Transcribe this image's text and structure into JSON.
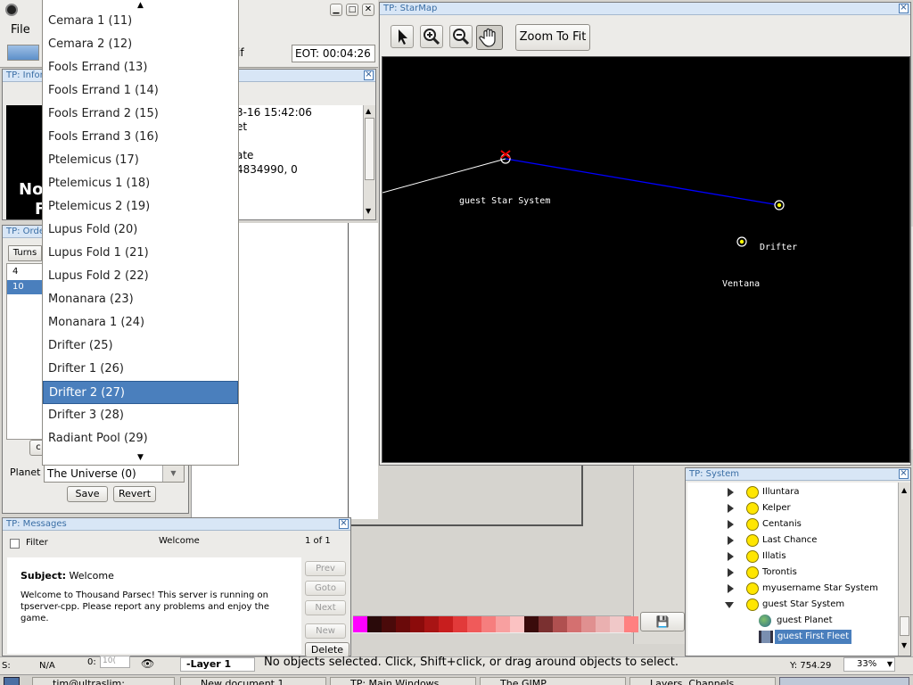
{
  "main_window": {
    "menu_file": "File",
    "field_partial": "if",
    "eot": "EOT: 00:04:26"
  },
  "info_window": {
    "title": "TP: Infor",
    "big_text_line1": "No",
    "big_text_line2": "F",
    "lines": [
      "3-16 15:42:06",
      "et",
      "",
      "ate",
      "4834990, 0"
    ]
  },
  "orders_window": {
    "title": "TP: Orde",
    "turns_label": "Turns",
    "rows": [
      "4",
      "10"
    ],
    "button_partial": "c",
    "planet_label": "Planet",
    "planet_value": "The Universe (0)",
    "save": "Save",
    "revert": "Revert"
  },
  "dropdown": {
    "items": [
      "Cemara 1 (11)",
      "Cemara 2 (12)",
      "Fools Errand (13)",
      "Fools Errand 1 (14)",
      "Fools Errand 2 (15)",
      "Fools Errand 3 (16)",
      "Ptelemicus (17)",
      "Ptelemicus 1 (18)",
      "Ptelemicus 2 (19)",
      "Lupus Fold (20)",
      "Lupus Fold 1 (21)",
      "Lupus Fold 2 (22)",
      "Monanara (23)",
      "Monanara 1 (24)",
      "Drifter (25)",
      "Drifter 1 (26)",
      "Drifter 2 (27)",
      "Drifter 3 (28)",
      "Radiant Pool (29)"
    ],
    "selected_index": 16
  },
  "starmap": {
    "title": "TP: StarMap",
    "zoom_to_fit": "Zoom To Fit",
    "labels": {
      "guest": "guest Star System",
      "drifter": "Drifter",
      "ventana": "Ventana"
    }
  },
  "system_window": {
    "title": "TP: System",
    "items": [
      {
        "label": "Illuntara"
      },
      {
        "label": "Kelper"
      },
      {
        "label": "Centanis"
      },
      {
        "label": "Last Chance"
      },
      {
        "label": "Illatis"
      },
      {
        "label": "Torontis"
      },
      {
        "label": "myusername Star System"
      },
      {
        "label": "guest Star System"
      }
    ],
    "children": [
      {
        "label": "guest Planet"
      },
      {
        "label": "guest First Fleet"
      }
    ]
  },
  "messages_window": {
    "title": "TP: Messages",
    "filter": "Filter",
    "heading": "Welcome",
    "counter": "1 of 1",
    "subject_label": "Subject:",
    "subject_value": "Welcome",
    "body": "Welcome to Thousand Parsec! This server is running on tpserver-cpp. Please report any problems and enjoy the game.",
    "buttons": {
      "prev": "Prev",
      "goto": "Goto",
      "next": "Next",
      "new": "New",
      "delete": "Delete"
    }
  },
  "gimp": {
    "status": "No objects selected. Click, Shift+click, or drag around objects to select.",
    "layer": "-Layer 1",
    "coord": "Y: 754.29",
    "zoom": "33%",
    "s_label": "S:",
    "na": "N/A",
    "zero": "0:",
    "percent_box": "10("
  },
  "taskbar": {
    "items": [
      "tim@ultraslim:",
      "New document 1",
      "TP: Main Windows",
      "The GIMP",
      "Layers, Channels"
    ]
  },
  "colors": {
    "title_bg": "#d8e6f6",
    "title_text": "#3a6ea5",
    "selection": "#4a7fbd",
    "route": "#0000ff"
  }
}
